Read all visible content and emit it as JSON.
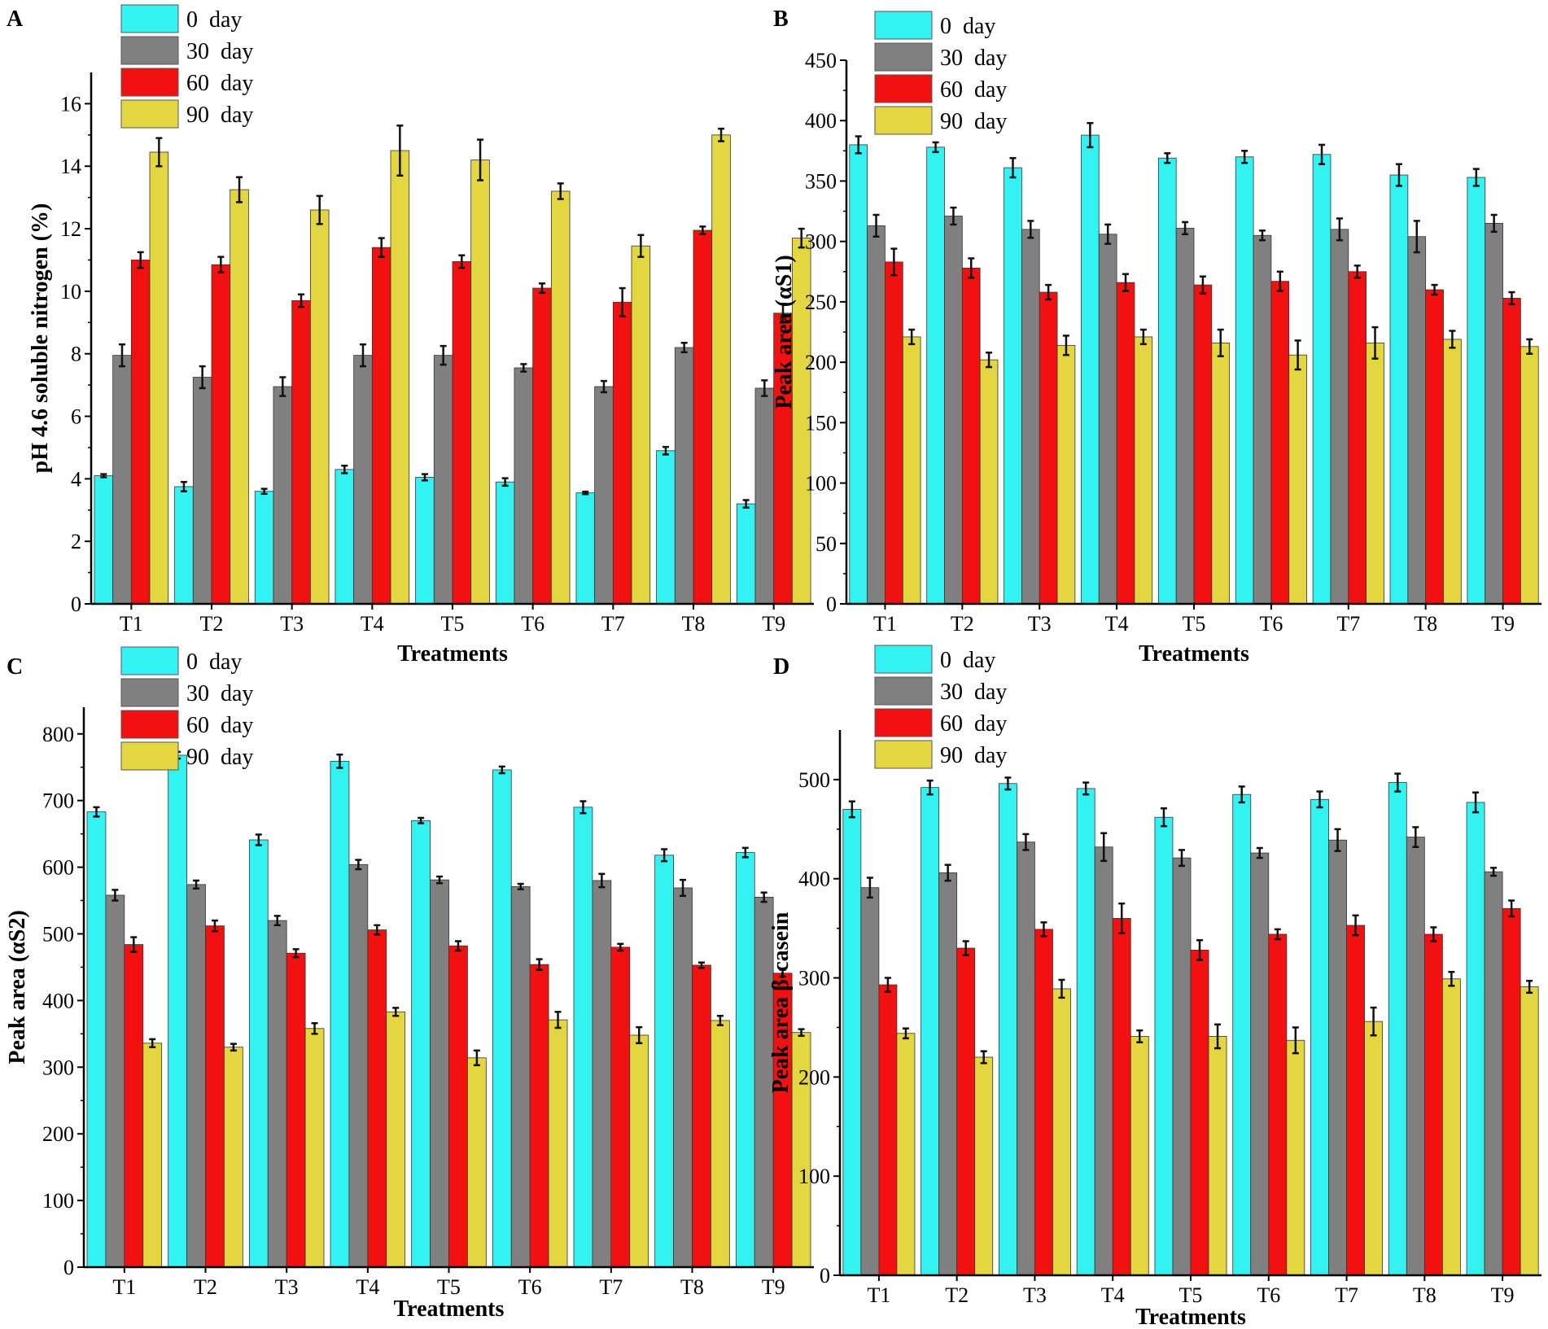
{
  "figure": {
    "series_names": [
      "0 day",
      "30 day",
      "60 day",
      "90 day"
    ],
    "series_colors": [
      "#33F2F2",
      "#808080",
      "#F21010",
      "#E3D640"
    ],
    "legend_labels": [
      "0  day",
      "30  day",
      "60  day",
      "90  day"
    ]
  },
  "chart_data": [
    {
      "panel": "A",
      "type": "bar",
      "categories": [
        "T1",
        "T2",
        "T3",
        "T4",
        "T5",
        "T6",
        "T7",
        "T8",
        "T9"
      ],
      "xlabel": "Treatments",
      "ylabel": "pH 4.6 soluble nitrogen (%)",
      "ylim": [
        0,
        17
      ],
      "yticks": [
        0,
        2,
        4,
        6,
        8,
        10,
        12,
        14,
        16
      ],
      "legend_position": "top-left",
      "series": [
        {
          "name": "0 day",
          "values": [
            4.1,
            3.75,
            3.6,
            4.3,
            4.05,
            3.9,
            3.55,
            4.9,
            3.2
          ],
          "errors": [
            0.05,
            0.15,
            0.08,
            0.12,
            0.1,
            0.12,
            0.04,
            0.12,
            0.12
          ]
        },
        {
          "name": "30 day",
          "values": [
            7.95,
            7.25,
            6.95,
            7.95,
            7.95,
            7.55,
            6.95,
            8.2,
            6.9
          ],
          "errors": [
            0.35,
            0.35,
            0.3,
            0.35,
            0.3,
            0.12,
            0.18,
            0.15,
            0.25
          ]
        },
        {
          "name": "60 day",
          "values": [
            11.0,
            10.85,
            9.7,
            11.4,
            10.95,
            10.1,
            9.65,
            11.95,
            9.3
          ],
          "errors": [
            0.25,
            0.25,
            0.2,
            0.3,
            0.2,
            0.15,
            0.45,
            0.12,
            0.3
          ]
        },
        {
          "name": "90 day",
          "values": [
            14.45,
            13.25,
            12.6,
            14.5,
            14.2,
            13.2,
            11.45,
            15.0,
            11.7
          ],
          "errors": [
            0.45,
            0.4,
            0.45,
            0.8,
            0.65,
            0.25,
            0.35,
            0.2,
            0.3
          ]
        }
      ]
    },
    {
      "panel": "B",
      "type": "bar",
      "categories": [
        "T1",
        "T2",
        "T3",
        "T4",
        "T5",
        "T6",
        "T7",
        "T8",
        "T9"
      ],
      "xlabel": "Treatments",
      "ylabel": "Peak area (αS1)",
      "ylim": [
        0,
        450
      ],
      "yticks": [
        0,
        50,
        100,
        150,
        200,
        250,
        300,
        350,
        400,
        450
      ],
      "legend_position": "top-left",
      "series": [
        {
          "name": "0 day",
          "values": [
            380,
            378,
            361,
            388,
            369,
            370,
            372,
            355,
            353
          ],
          "errors": [
            7,
            4,
            8,
            10,
            4,
            5,
            8,
            9,
            7
          ]
        },
        {
          "name": "30 day",
          "values": [
            313,
            321,
            310,
            306,
            311,
            305,
            310,
            304,
            315
          ],
          "errors": [
            9,
            7,
            7,
            8,
            5,
            4,
            9,
            13,
            7
          ]
        },
        {
          "name": "60 day",
          "values": [
            283,
            278,
            258,
            266,
            264,
            267,
            275,
            260,
            253
          ],
          "errors": [
            11,
            8,
            6,
            7,
            7,
            8,
            5,
            4,
            5
          ]
        },
        {
          "name": "90 day",
          "values": [
            221,
            202,
            214,
            221,
            216,
            206,
            216,
            219,
            213
          ],
          "errors": [
            6,
            6,
            8,
            6,
            11,
            12,
            13,
            7,
            6
          ]
        }
      ]
    },
    {
      "panel": "C",
      "type": "bar",
      "categories": [
        "T1",
        "T2",
        "T3",
        "T4",
        "T5",
        "T6",
        "T7",
        "T8",
        "T9"
      ],
      "xlabel": "Treatments",
      "ylabel": "Peak area (αS2)",
      "ylim": [
        0,
        840
      ],
      "yticks": [
        0,
        100,
        200,
        300,
        400,
        500,
        600,
        700,
        800
      ],
      "legend_position": "top-left",
      "series": [
        {
          "name": "0 day",
          "values": [
            683,
            768,
            641,
            759,
            670,
            746,
            690,
            618,
            622
          ],
          "errors": [
            7,
            5,
            8,
            10,
            4,
            5,
            9,
            9,
            7
          ]
        },
        {
          "name": "30 day",
          "values": [
            558,
            574,
            520,
            604,
            581,
            571,
            580,
            569,
            555
          ],
          "errors": [
            8,
            6,
            7,
            7,
            5,
            4,
            10,
            12,
            7
          ]
        },
        {
          "name": "60 day",
          "values": [
            484,
            512,
            471,
            506,
            482,
            454,
            480,
            453,
            441
          ],
          "errors": [
            11,
            8,
            6,
            7,
            7,
            8,
            5,
            4,
            5
          ]
        },
        {
          "name": "90 day",
          "values": [
            336,
            330,
            358,
            383,
            314,
            371,
            348,
            370,
            352
          ],
          "errors": [
            6,
            5,
            8,
            6,
            11,
            12,
            12,
            7,
            5
          ]
        }
      ]
    },
    {
      "panel": "D",
      "type": "bar",
      "categories": [
        "T1",
        "T2",
        "T3",
        "T4",
        "T5",
        "T6",
        "T7",
        "T8",
        "T9"
      ],
      "xlabel": "Treatments",
      "ylabel": "Peak area β-casein",
      "ylim": [
        0,
        550
      ],
      "yticks": [
        0,
        100,
        200,
        300,
        400,
        500
      ],
      "legend_position": "top-left",
      "series": [
        {
          "name": "0 day",
          "values": [
            470,
            492,
            496,
            491,
            462,
            485,
            480,
            497,
            477
          ],
          "errors": [
            8,
            7,
            6,
            6,
            9,
            8,
            8,
            9,
            10
          ]
        },
        {
          "name": "30 day",
          "values": [
            391,
            406,
            437,
            432,
            421,
            426,
            439,
            442,
            407
          ],
          "errors": [
            10,
            8,
            8,
            14,
            8,
            5,
            11,
            10,
            4
          ]
        },
        {
          "name": "60 day",
          "values": [
            293,
            330,
            349,
            360,
            328,
            344,
            353,
            344,
            370
          ],
          "errors": [
            7,
            7,
            7,
            15,
            10,
            5,
            10,
            7,
            8
          ]
        },
        {
          "name": "90 day",
          "values": [
            244,
            220,
            289,
            241,
            241,
            237,
            256,
            299,
            291
          ],
          "errors": [
            5,
            6,
            9,
            6,
            12,
            13,
            14,
            7,
            6
          ]
        }
      ]
    }
  ]
}
